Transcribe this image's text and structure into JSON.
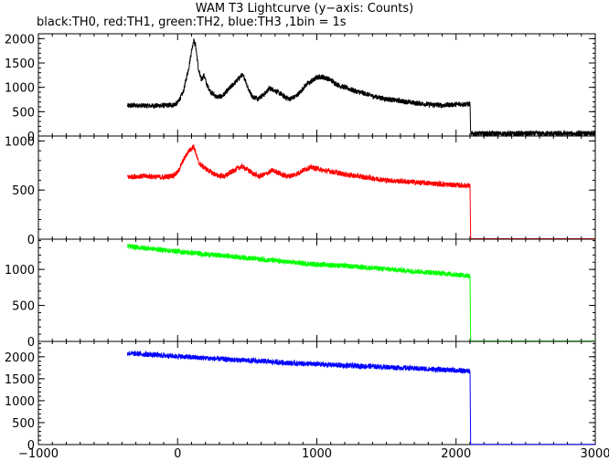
{
  "chart_data": {
    "type": "line",
    "title": "WAM T3 Lightcurve (y−axis: Counts)",
    "subtitle": "black:TH0, red:TH1, green:TH2, blue:TH3 ,1bin = 1s",
    "xlim": [
      -1000,
      3000
    ],
    "x_ticks": [
      "−1000",
      "0",
      "1000",
      "2000",
      "3000"
    ],
    "x_tick_values": [
      -1000,
      0,
      1000,
      2000,
      3000
    ],
    "shared_x": true,
    "grid": false,
    "panels": [
      {
        "series": "TH0",
        "color": "#000000",
        "ylim": [
          0,
          2100
        ],
        "y_tick_values": [
          0,
          500,
          1000,
          1500,
          2000
        ],
        "y_ticks": [
          "0",
          "500",
          "1000",
          "1500",
          "2000"
        ],
        "x": [
          -360,
          -300,
          -200,
          -100,
          -30,
          0,
          40,
          80,
          100,
          115,
          130,
          150,
          170,
          190,
          210,
          240,
          280,
          320,
          380,
          430,
          460,
          480,
          510,
          540,
          580,
          620,
          660,
          690,
          720,
          760,
          800,
          840,
          880,
          920,
          960,
          1000,
          1030,
          1060,
          1100,
          1150,
          1200,
          1250,
          1300,
          1350,
          1400,
          1500,
          1600,
          1700,
          1800,
          1900,
          2000,
          2100,
          2105,
          2200,
          3000
        ],
        "y": [
          620,
          630,
          620,
          625,
          640,
          680,
          900,
          1400,
          1750,
          1970,
          1850,
          1350,
          1150,
          1250,
          1050,
          900,
          800,
          820,
          1000,
          1150,
          1250,
          1200,
          950,
          800,
          780,
          850,
          980,
          950,
          900,
          820,
          760,
          800,
          900,
          1050,
          1120,
          1200,
          1220,
          1200,
          1150,
          1050,
          1000,
          950,
          900,
          870,
          820,
          760,
          720,
          680,
          650,
          630,
          650,
          660,
          50,
          50,
          50
        ]
      },
      {
        "series": "TH1",
        "color": "#ff0000",
        "ylim": [
          0,
          1050
        ],
        "y_tick_values": [
          0,
          500,
          1000
        ],
        "y_ticks": [
          "0",
          "500",
          "1000"
        ],
        "x": [
          -360,
          -300,
          -200,
          -100,
          -30,
          0,
          40,
          80,
          100,
          115,
          130,
          150,
          180,
          220,
          280,
          340,
          380,
          430,
          460,
          490,
          530,
          580,
          630,
          680,
          720,
          760,
          800,
          850,
          900,
          950,
          1000,
          1050,
          1100,
          1200,
          1300,
          1400,
          1500,
          1600,
          1700,
          1800,
          1900,
          2000,
          2100,
          2105,
          2200,
          3000
        ],
        "y": [
          630,
          640,
          640,
          630,
          650,
          680,
          800,
          900,
          920,
          950,
          880,
          780,
          740,
          700,
          650,
          640,
          680,
          720,
          740,
          720,
          680,
          640,
          660,
          700,
          680,
          650,
          640,
          660,
          700,
          730,
          720,
          700,
          690,
          660,
          640,
          620,
          600,
          590,
          580,
          570,
          560,
          550,
          545,
          5,
          5,
          5
        ]
      },
      {
        "series": "TH2",
        "color": "#00ff00",
        "ylim": [
          0,
          1420
        ],
        "y_tick_values": [
          0,
          500,
          1000
        ],
        "y_ticks": [
          "0",
          "500",
          "1000"
        ],
        "x": [
          -360,
          -200,
          0,
          200,
          400,
          600,
          800,
          1000,
          1200,
          1400,
          1600,
          1800,
          2000,
          2100,
          2105,
          2200,
          3000
        ],
        "y": [
          1320,
          1290,
          1250,
          1210,
          1180,
          1140,
          1100,
          1070,
          1050,
          1020,
          990,
          960,
          930,
          910,
          5,
          5,
          5
        ]
      },
      {
        "series": "TH3",
        "color": "#0000ff",
        "ylim": [
          0,
          2350
        ],
        "y_tick_values": [
          0,
          500,
          1000,
          1500,
          2000
        ],
        "y_ticks": [
          "0",
          "500",
          "1000",
          "1500",
          "2000"
        ],
        "x": [
          -360,
          -200,
          0,
          200,
          400,
          600,
          800,
          1000,
          1200,
          1400,
          1600,
          1800,
          2000,
          2100,
          2105,
          2200,
          3000
        ],
        "y": [
          2080,
          2050,
          2010,
          1970,
          1930,
          1900,
          1860,
          1830,
          1800,
          1780,
          1750,
          1720,
          1690,
          1670,
          5,
          5,
          5
        ]
      }
    ]
  }
}
